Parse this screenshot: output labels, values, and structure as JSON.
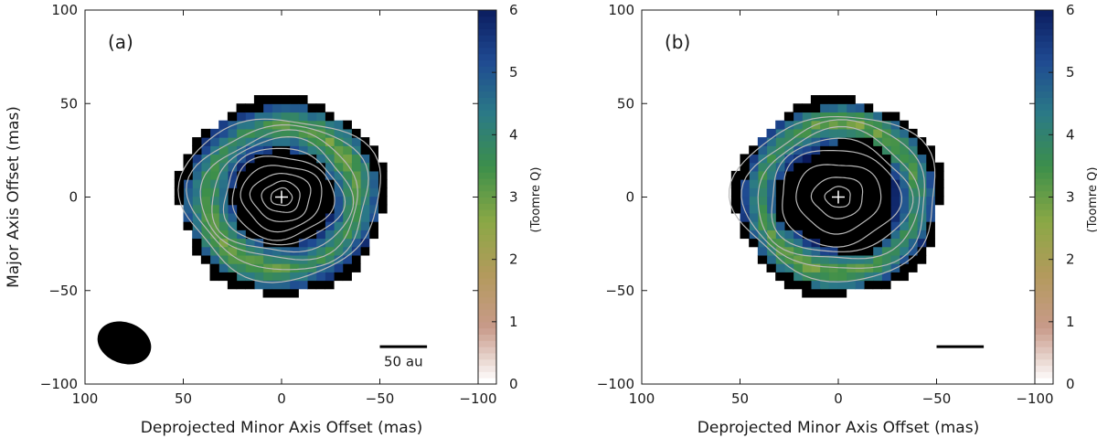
{
  "chart_data": [
    {
      "type": "heatmap",
      "panel_label": "(a)",
      "xlabel": "Deprojected Minor Axis Offset (mas)",
      "ylabel": "Major Axis Offset (mas)",
      "xlim": [
        100,
        -100
      ],
      "ylim": [
        -100,
        100
      ],
      "x_ticks": [
        "100",
        "50",
        "0",
        "−50",
        "−100"
      ],
      "y_ticks": [
        "−100",
        "−50",
        "0",
        "50",
        "100"
      ],
      "colorbar": {
        "label": "(Toomre Q)",
        "range": [
          0,
          6
        ],
        "ticks": [
          "0",
          "1",
          "2",
          "3",
          "4",
          "5",
          "6"
        ]
      },
      "ring": {
        "inner_radius": 26,
        "outer_radius": 50,
        "q_min": 2.3,
        "q_max": 5.5
      },
      "center_marker": [
        0,
        0
      ],
      "beam": {
        "center_x": 80,
        "center_y": -78,
        "major_axis": 28,
        "minor_axis": 22,
        "color": "#000000"
      },
      "scale_bar": {
        "label": "50 au",
        "length": "50 au",
        "color": "#000000"
      }
    },
    {
      "type": "heatmap",
      "panel_label": "(b)",
      "xlabel": "Deprojected Minor Axis Offset (mas)",
      "ylabel": "",
      "xlim": [
        100,
        -100
      ],
      "ylim": [
        -100,
        100
      ],
      "x_ticks": [
        "100",
        "50",
        "0",
        "−50",
        "−100"
      ],
      "y_ticks": [
        "−100",
        "−50",
        "0",
        "50",
        "100"
      ],
      "colorbar": {
        "label": "(Toomre Q)",
        "range": [
          0,
          6
        ],
        "ticks": [
          "0",
          "1",
          "2",
          "3",
          "4",
          "5",
          "6"
        ]
      },
      "ring": {
        "inner_radius": 30,
        "outer_radius": 50,
        "q_min": 2.3,
        "q_max": 5.5
      },
      "center_marker": [
        0,
        0
      ],
      "scale_bar": {
        "label": "",
        "length": "50 au",
        "color": "#000000"
      }
    }
  ],
  "colormap": [
    "#ffffff",
    "#c89a8a",
    "#b39a5c",
    "#8aa845",
    "#3d8f4a",
    "#2b7a86",
    "#1f4a92",
    "#0a1a5c"
  ]
}
